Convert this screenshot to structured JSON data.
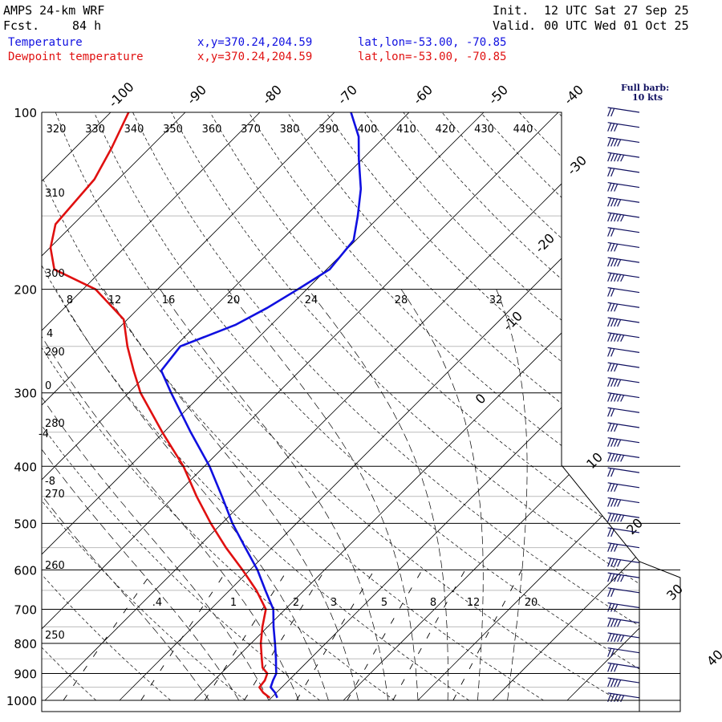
{
  "header": {
    "model": "AMPS 24-km WRF",
    "fcst_label": "Fcst.",
    "fcst_value": "84 h",
    "init_label": "Init.",
    "init_value": "12 UTC Sat 27 Sep 25",
    "valid_label": "Valid.",
    "valid_value": "00 UTC Wed 01 Oct 25"
  },
  "legend": [
    {
      "name": "Temperature",
      "xy": "x,y=370.24,204.59",
      "latlon": "lat,lon=-53.00, -70.85",
      "color": "#1010e0"
    },
    {
      "name": "Dewpoint temperature",
      "xy": "x,y=370.24,204.59",
      "latlon": "lat,lon=-53.00, -70.85",
      "color": "#e01010"
    }
  ],
  "barb_legend": {
    "line1": "Full barb:",
    "line2": "10 kts"
  },
  "chart_data": {
    "type": "line",
    "chart_kind": "skew-T log-p sounding",
    "y_axis": "pressure (hPa), log scale",
    "ylim": [
      1000,
      100
    ],
    "pressure_labels": [
      100,
      200,
      300,
      400,
      500,
      600,
      700,
      800,
      900,
      1000
    ],
    "temperature_labels": [
      -100,
      -90,
      -80,
      -70,
      -60,
      -50,
      -40,
      -30,
      -20,
      -10,
      0,
      10,
      20,
      30,
      40
    ],
    "dry_adiabat_labels_top": [
      320,
      330,
      340,
      350,
      360,
      370,
      380,
      390,
      400,
      410,
      420,
      430,
      440
    ],
    "dry_adiabat_labels_left": [
      310,
      300,
      290,
      280,
      270,
      260,
      250
    ],
    "equiv_potential_temp_labels": [
      8,
      12,
      16,
      20,
      24,
      28,
      32
    ],
    "moist_adiabat_labels": [
      4,
      0,
      -4,
      -8
    ],
    "mixing_ratio_labels": [
      ".4",
      "1",
      "2",
      "3",
      "5",
      "8",
      "12",
      "20"
    ],
    "series": [
      {
        "name": "Temperature",
        "color": "#1010e0",
        "points": [
          [
            990,
            0.8
          ],
          [
            970,
            -0.2
          ],
          [
            950,
            -1.5
          ],
          [
            925,
            -2.1
          ],
          [
            900,
            -2.6
          ],
          [
            880,
            -3.4
          ],
          [
            850,
            -4.6
          ],
          [
            800,
            -6.8
          ],
          [
            750,
            -9.2
          ],
          [
            700,
            -11.6
          ],
          [
            650,
            -15.2
          ],
          [
            600,
            -19.0
          ],
          [
            550,
            -23.6
          ],
          [
            500,
            -28.6
          ],
          [
            450,
            -33.6
          ],
          [
            400,
            -39.3
          ],
          [
            350,
            -46.4
          ],
          [
            300,
            -54.3
          ],
          [
            275,
            -58.6
          ],
          [
            250,
            -59.3
          ],
          [
            230,
            -54.8
          ],
          [
            215,
            -52.8
          ],
          [
            200,
            -51.2
          ],
          [
            185,
            -49.6
          ],
          [
            165,
            -50.3
          ],
          [
            150,
            -53.0
          ],
          [
            135,
            -56.2
          ],
          [
            120,
            -60.5
          ],
          [
            110,
            -63.5
          ],
          [
            100,
            -67.8
          ]
        ]
      },
      {
        "name": "Dewpoint temperature",
        "color": "#e01010",
        "points": [
          [
            990,
            -0.2
          ],
          [
            970,
            -1.8
          ],
          [
            950,
            -3.0
          ],
          [
            925,
            -3.2
          ],
          [
            900,
            -3.8
          ],
          [
            880,
            -5.2
          ],
          [
            850,
            -6.5
          ],
          [
            800,
            -8.7
          ],
          [
            750,
            -10.7
          ],
          [
            700,
            -12.6
          ],
          [
            650,
            -16.4
          ],
          [
            600,
            -21.0
          ],
          [
            550,
            -26.2
          ],
          [
            500,
            -31.5
          ],
          [
            450,
            -37.0
          ],
          [
            400,
            -42.8
          ],
          [
            350,
            -50.2
          ],
          [
            300,
            -58.4
          ],
          [
            275,
            -62.3
          ],
          [
            250,
            -66.4
          ],
          [
            225,
            -70.5
          ],
          [
            200,
            -78.3
          ],
          [
            185,
            -86.5
          ],
          [
            170,
            -89.9
          ],
          [
            155,
            -92.4
          ],
          [
            130,
            -93.2
          ],
          [
            115,
            -95.1
          ],
          [
            100,
            -97.6
          ]
        ]
      }
    ],
    "wind_barbs": {
      "note": "Full barb: 10 kts"
    }
  }
}
